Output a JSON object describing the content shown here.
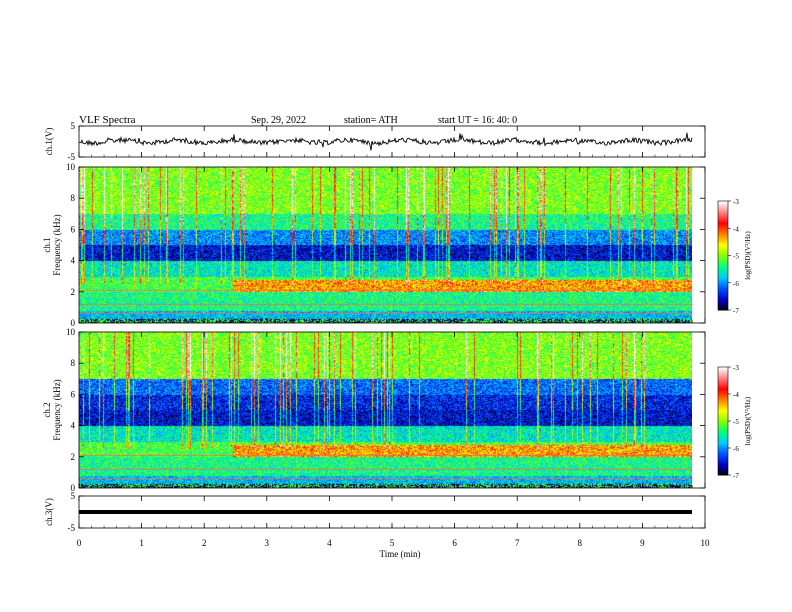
{
  "header": {
    "title": "VLF  Spectra",
    "date": "Sep. 29, 2022",
    "station": "station= ATH",
    "start": "start  UT  =   16: 40: 0"
  },
  "chart_data": [
    {
      "type": "line",
      "name": "ch1-waveform",
      "ylabel": "ch.1(V)",
      "ylim": [
        -5,
        5
      ],
      "yticks": [
        "5",
        "-5"
      ],
      "xlim": [
        0,
        10
      ],
      "data_end_min": 9.8,
      "baseline": 0,
      "amplitude": 1
    },
    {
      "type": "heatmap",
      "name": "ch1-spectrogram",
      "ylabel_top": "ch.1",
      "ylabel": "Frequency  (kHz)",
      "ylim": [
        0,
        10
      ],
      "yticks": [
        "0",
        "2",
        "4",
        "6",
        "8",
        "10"
      ],
      "xlim": [
        0,
        10
      ],
      "data_end_min": 9.8
    },
    {
      "type": "heatmap",
      "name": "ch2-spectrogram",
      "ylabel_top": "ch.2",
      "ylabel": "Frequency  (kHz)",
      "ylim": [
        0,
        10
      ],
      "yticks": [
        "0",
        "2",
        "4",
        "6",
        "8",
        "10"
      ],
      "xlim": [
        0,
        10
      ],
      "data_end_min": 9.8
    },
    {
      "type": "line",
      "name": "ch3-waveform",
      "ylabel": "ch.3(V)",
      "ylim": [
        -5,
        5
      ],
      "yticks": [
        "5",
        "-5"
      ],
      "xlim": [
        0,
        10
      ],
      "data_end_min": 9.8,
      "baseline": 1,
      "amplitude": 0
    }
  ],
  "x_axis": {
    "label": "Time  (min)",
    "ticks": [
      "0",
      "1",
      "2",
      "3",
      "4",
      "5",
      "6",
      "7",
      "8",
      "9",
      "10"
    ]
  },
  "colorbar": {
    "label": "log(PSD)(V²/Hz)",
    "ticks": [
      "-3",
      "-4",
      "-5",
      "-6",
      "-7"
    ],
    "range": [
      -7,
      -3
    ],
    "colors": [
      "#000000",
      "#0000c8",
      "#0050ff",
      "#00c8ff",
      "#00ff80",
      "#80ff00",
      "#ffff00",
      "#ff8000",
      "#ff0000",
      "#ff8080",
      "#ffffff"
    ]
  }
}
